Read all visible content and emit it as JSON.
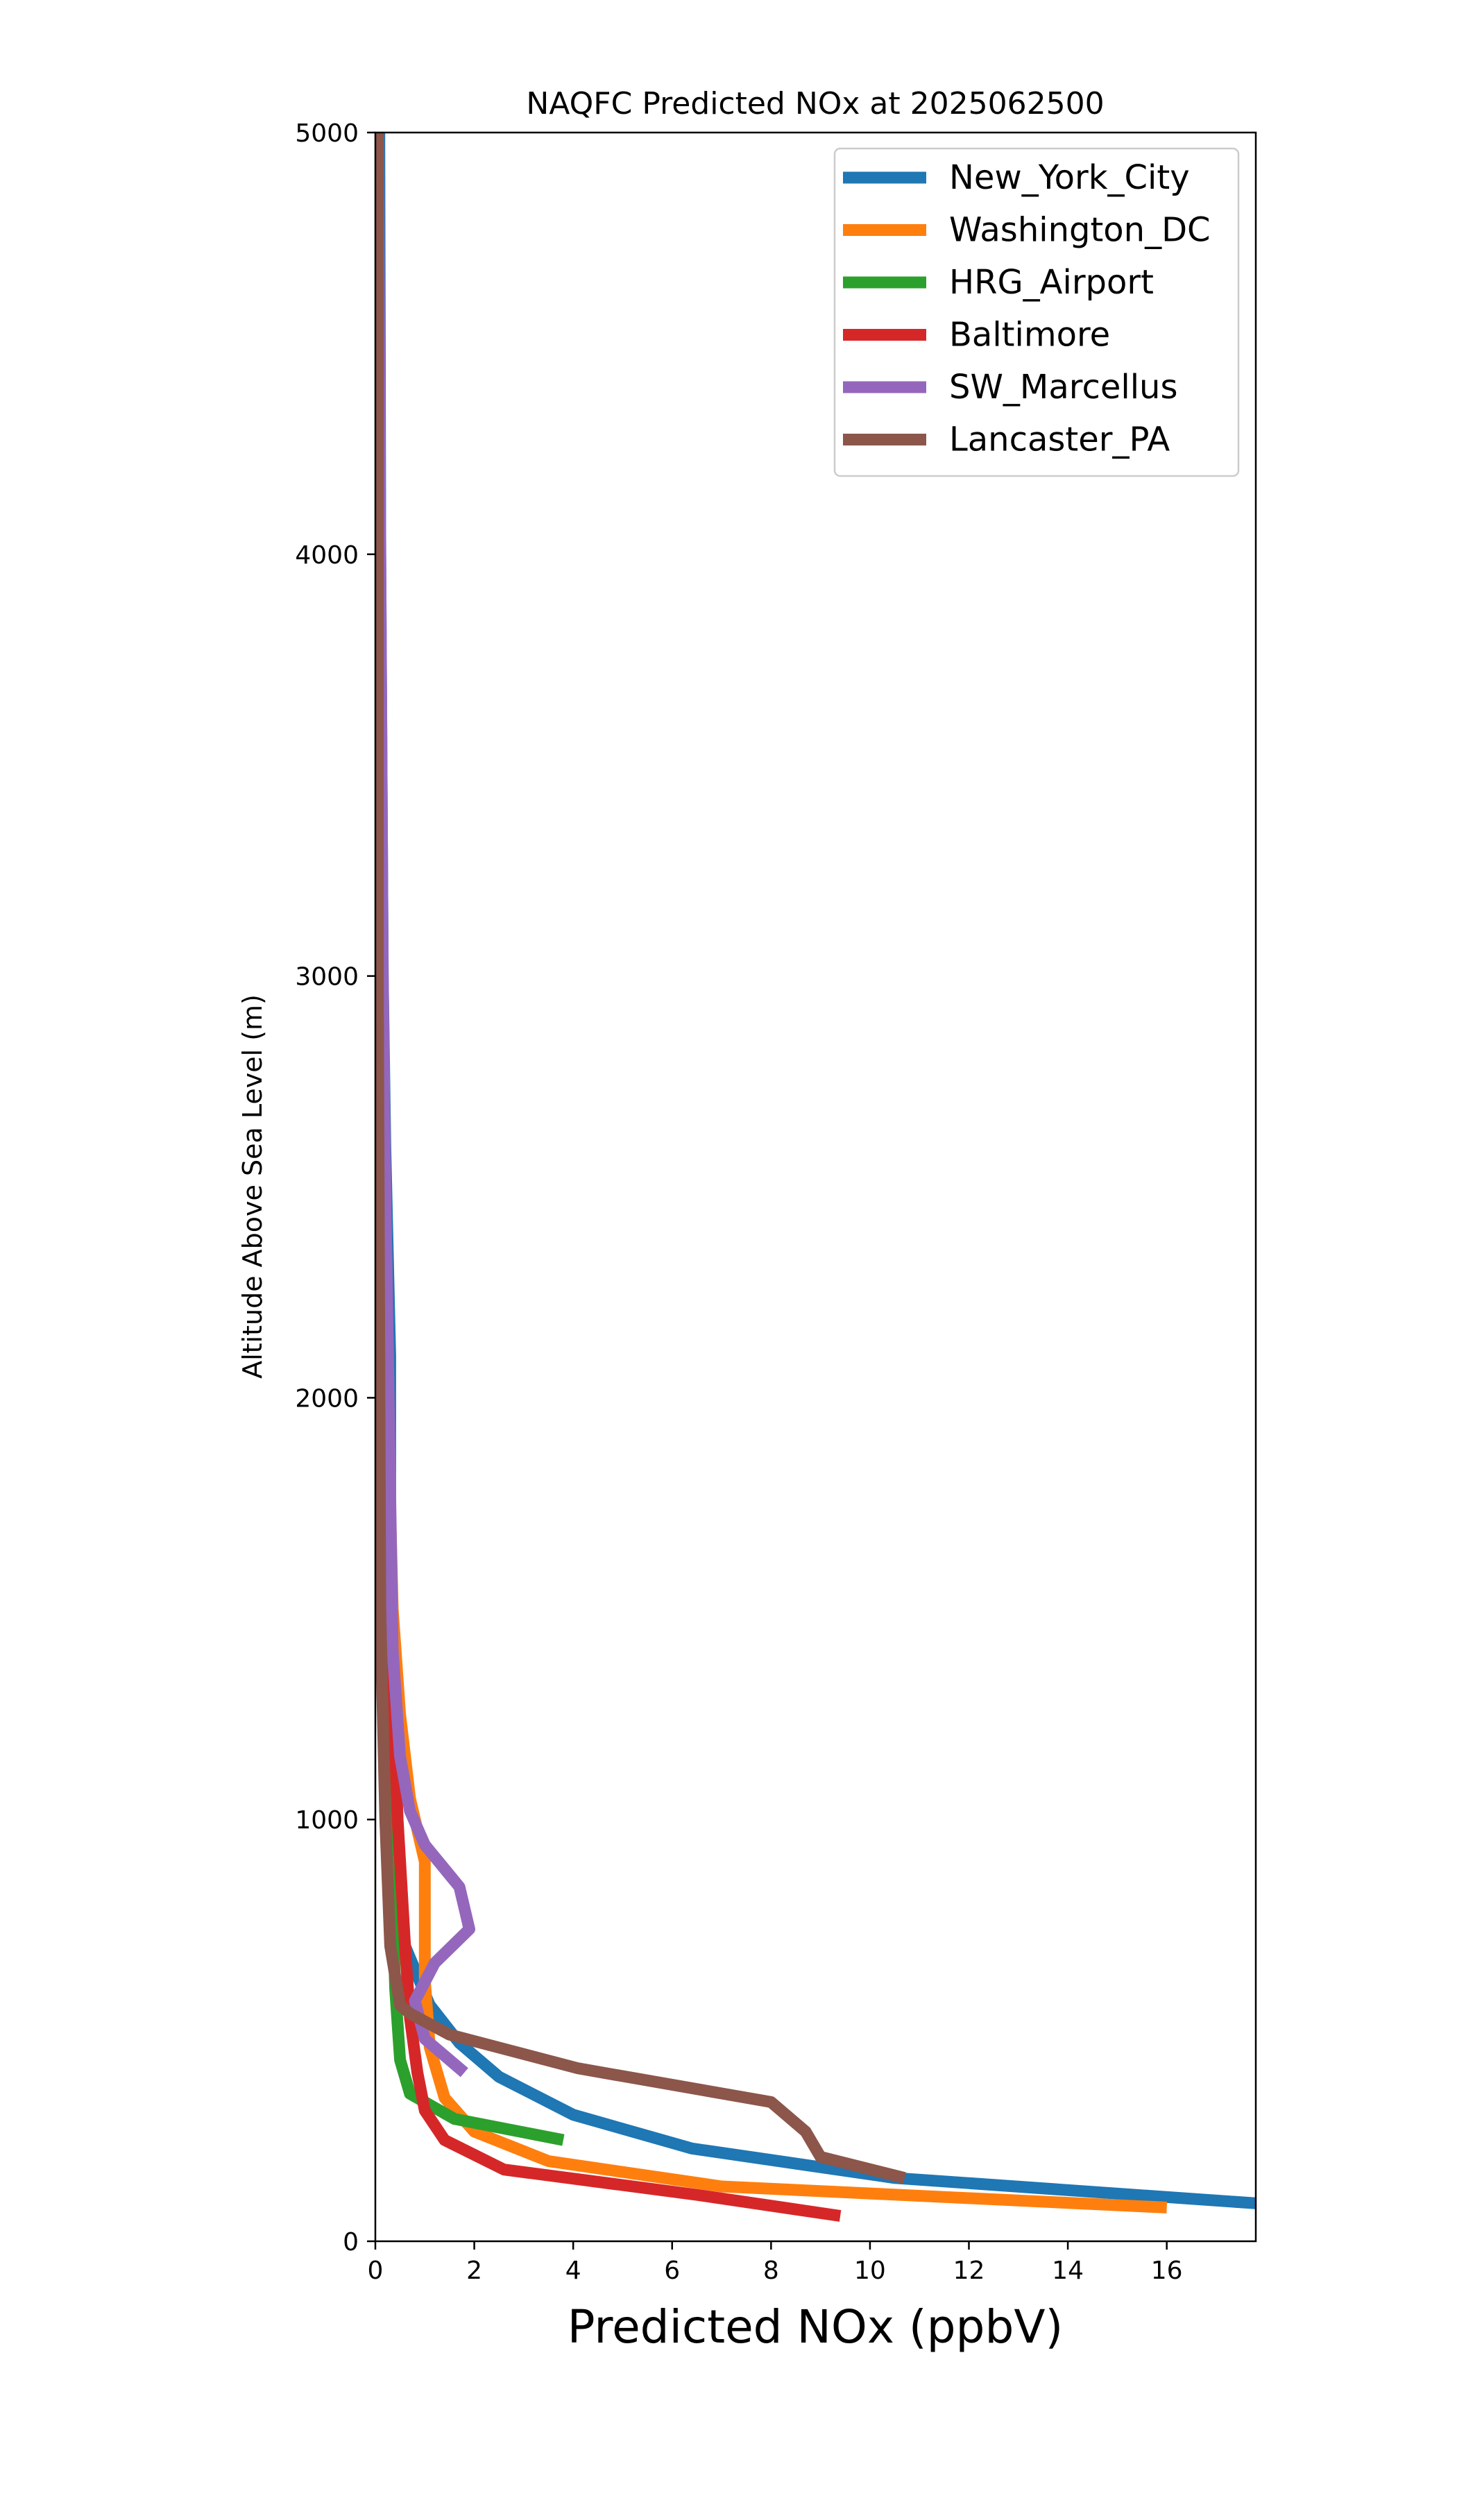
{
  "chart_data": {
    "type": "line",
    "title": "NAQFC Predicted NOx at 2025062500",
    "xlabel": "Predicted NOx (ppbV)",
    "ylabel": "Altitude Above Sea Level (m)",
    "xlim": [
      0,
      17.8
    ],
    "ylim": [
      0,
      5000
    ],
    "xticks": [
      "0",
      "2",
      "4",
      "6",
      "8",
      "10",
      "12",
      "14",
      "16"
    ],
    "yticks": [
      "0",
      "1000",
      "2000",
      "3000",
      "4000",
      "5000"
    ],
    "grid": false,
    "legend_position": "top-right",
    "series": [
      {
        "name": "New_York_City",
        "color": "#1f77b4",
        "points": [
          [
            17.8,
            90
          ],
          [
            10.5,
            150
          ],
          [
            6.4,
            220
          ],
          [
            4.0,
            300
          ],
          [
            2.5,
            390
          ],
          [
            1.7,
            470
          ],
          [
            1.1,
            560
          ],
          [
            0.6,
            700
          ],
          [
            0.4,
            900
          ],
          [
            0.3,
            1200
          ],
          [
            0.3,
            2100
          ],
          [
            0.2,
            2600
          ],
          [
            0.15,
            3000
          ],
          [
            0.1,
            4000
          ],
          [
            0.08,
            5000
          ]
        ]
      },
      {
        "name": "Washington_DC",
        "color": "#ff7f0e",
        "points": [
          [
            16.0,
            80
          ],
          [
            7.0,
            130
          ],
          [
            3.5,
            190
          ],
          [
            2.0,
            260
          ],
          [
            1.4,
            340
          ],
          [
            1.1,
            460
          ],
          [
            1.0,
            620
          ],
          [
            1.0,
            900
          ],
          [
            0.7,
            1050
          ],
          [
            0.5,
            1250
          ],
          [
            0.35,
            1500
          ],
          [
            0.2,
            2200
          ],
          [
            0.1,
            3000
          ],
          [
            0.05,
            5000
          ]
        ]
      },
      {
        "name": "HRG_Airport",
        "color": "#2ca02c",
        "points": [
          [
            3.8,
            240
          ],
          [
            1.6,
            290
          ],
          [
            0.7,
            350
          ],
          [
            0.5,
            430
          ],
          [
            0.4,
            600
          ],
          [
            0.35,
            800
          ],
          [
            0.3,
            1000
          ],
          [
            0.2,
            1500
          ],
          [
            0.1,
            2500
          ],
          [
            0.05,
            5000
          ]
        ]
      },
      {
        "name": "Baltimore",
        "color": "#d62728",
        "points": [
          [
            9.4,
            60
          ],
          [
            6.5,
            110
          ],
          [
            2.6,
            170
          ],
          [
            1.4,
            240
          ],
          [
            1.0,
            310
          ],
          [
            0.85,
            400
          ],
          [
            0.7,
            530
          ],
          [
            0.6,
            700
          ],
          [
            0.45,
            1000
          ],
          [
            0.3,
            1500
          ],
          [
            0.15,
            2500
          ],
          [
            0.05,
            5000
          ]
        ]
      },
      {
        "name": "SW_Marcellus",
        "color": "#9467bd",
        "points": [
          [
            1.8,
            400
          ],
          [
            1.0,
            480
          ],
          [
            0.8,
            570
          ],
          [
            1.2,
            660
          ],
          [
            1.9,
            740
          ],
          [
            1.7,
            840
          ],
          [
            1.0,
            940
          ],
          [
            0.7,
            1020
          ],
          [
            0.5,
            1150
          ],
          [
            0.35,
            1400
          ],
          [
            0.2,
            2500
          ],
          [
            0.15,
            3000
          ],
          [
            0.05,
            5000
          ]
        ]
      },
      {
        "name": "Lancaster_PA",
        "color": "#8c564b",
        "points": [
          [
            10.7,
            150
          ],
          [
            9.0,
            200
          ],
          [
            8.7,
            260
          ],
          [
            8.0,
            330
          ],
          [
            4.1,
            410
          ],
          [
            1.5,
            490
          ],
          [
            0.7,
            540
          ],
          [
            0.5,
            560
          ],
          [
            0.3,
            700
          ],
          [
            0.2,
            1000
          ],
          [
            0.1,
            1500
          ],
          [
            0.05,
            3000
          ],
          [
            0.05,
            5000
          ]
        ]
      }
    ]
  }
}
